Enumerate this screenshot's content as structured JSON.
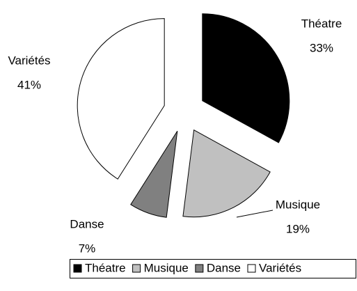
{
  "chart_data": {
    "type": "pie",
    "categories": [
      "Théatre",
      "Musique",
      "Danse",
      "Variétés"
    ],
    "values": [
      33,
      19,
      7,
      41
    ],
    "value_labels": [
      "33%",
      "19%",
      "7%",
      "41%"
    ],
    "colors": [
      "#000000",
      "#c0c0c0",
      "#808080",
      "#ffffff"
    ],
    "legend": "bottom"
  }
}
